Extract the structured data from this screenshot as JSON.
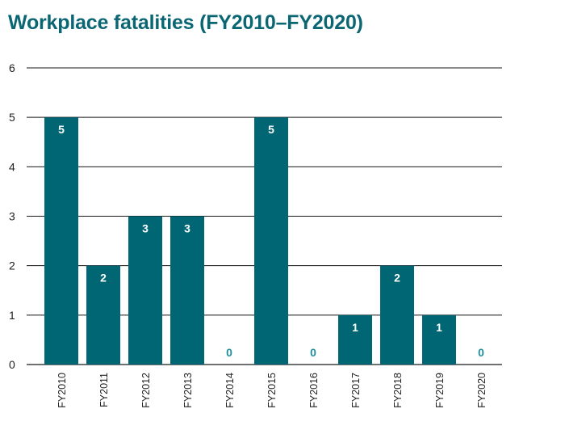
{
  "chart_data": {
    "type": "bar",
    "title": "Workplace fatalities (FY2010–FY2020)",
    "xlabel": "",
    "ylabel": "",
    "categories": [
      "FY2010",
      "FY2011",
      "FY2012",
      "FY2013",
      "FY2014",
      "FY2015",
      "FY2016",
      "FY2017",
      "FY2018",
      "FY2019",
      "FY2020"
    ],
    "values": [
      5,
      2,
      3,
      3,
      0,
      5,
      0,
      1,
      2,
      1,
      0
    ],
    "ylim": [
      0,
      6
    ],
    "yticks": [
      0,
      1,
      2,
      3,
      4,
      5,
      6
    ],
    "grid": true,
    "legend": "none",
    "colors": {
      "bar": "#006674",
      "title": "#0b6674",
      "zero_label": "#1e8f9e"
    }
  }
}
